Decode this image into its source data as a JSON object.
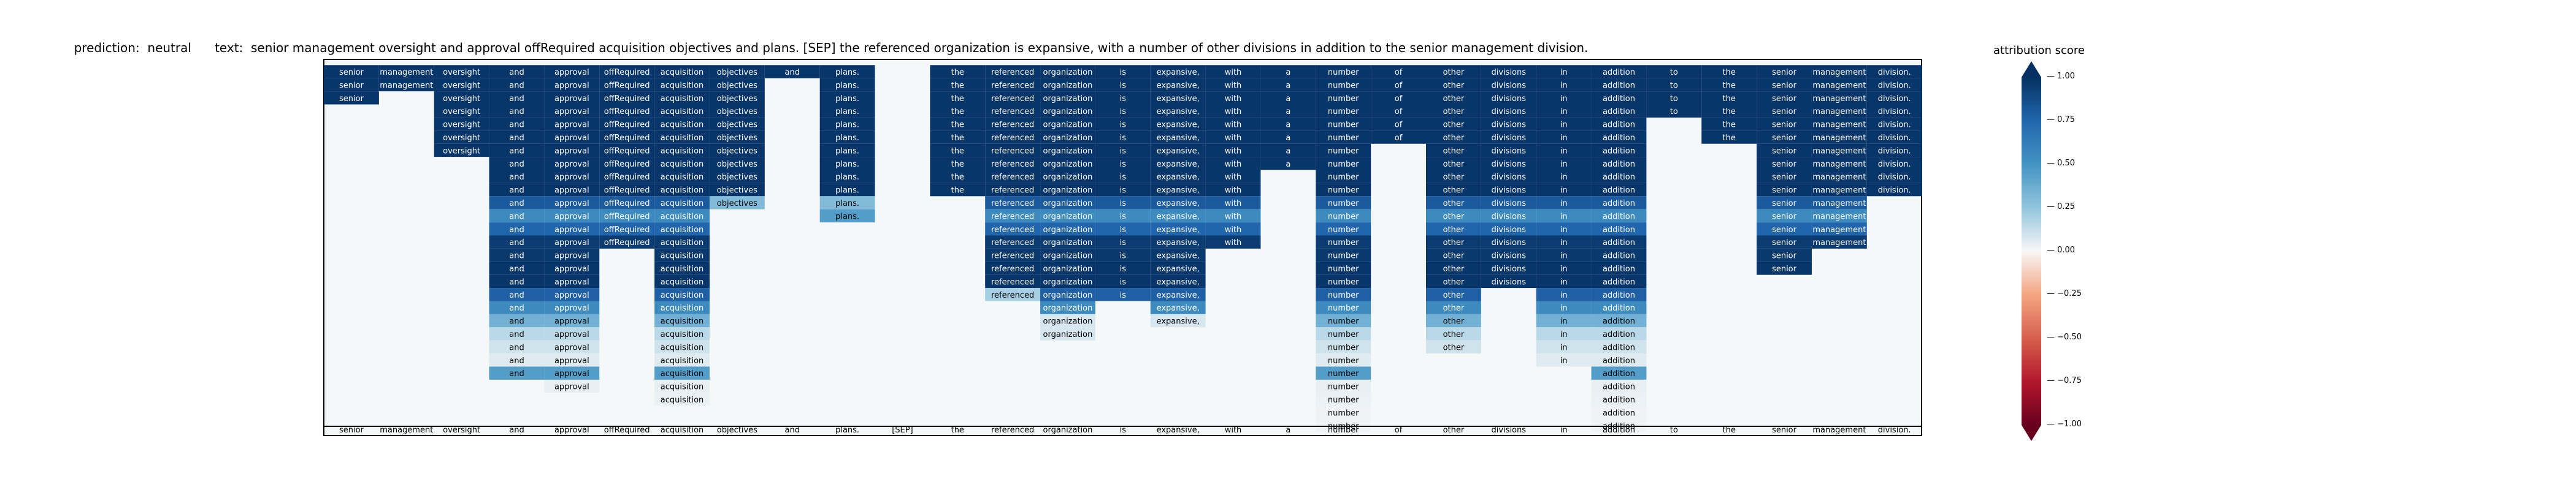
{
  "title": "prediction:  neutral      text:  senior management oversight and approval offRequired acquisition objectives and plans. [SEP] the referenced organization is expansive, with a number of other divisions in addition to the senior management division.",
  "chart_data": {
    "type": "heatmap",
    "tokens": [
      "senior",
      "management",
      "oversight",
      "and",
      "approval",
      "offRequired",
      "acquisition",
      "objectives",
      "and",
      "plans.",
      "[SEP]",
      "the",
      "referenced",
      "organization",
      "is",
      "expansive,",
      "with",
      "a",
      "number",
      "of",
      "other",
      "divisions",
      "in",
      "addition",
      "to",
      "the",
      "senior",
      "management",
      "division."
    ],
    "column_heights": [
      3,
      2,
      7,
      24,
      25,
      14,
      26,
      11,
      1,
      12,
      0,
      10,
      18,
      21,
      18,
      20,
      14,
      8,
      28,
      6,
      22,
      17,
      23,
      28,
      4,
      6,
      16,
      14,
      10
    ],
    "column_values": [
      [
        0.97,
        0.97,
        0.97
      ],
      [
        0.97,
        0.97
      ],
      [
        0.97,
        0.97,
        0.97,
        0.97,
        0.97,
        0.97,
        0.97
      ],
      [
        0.97,
        0.97,
        0.97,
        0.97,
        0.97,
        0.97,
        0.97,
        0.97,
        0.97,
        0.97,
        0.8,
        0.55,
        0.75,
        0.95,
        0.96,
        0.97,
        0.97,
        0.78,
        0.55,
        0.35,
        0.15,
        0.1,
        0.06,
        0.45
      ],
      [
        0.97,
        0.97,
        0.97,
        0.97,
        0.97,
        0.97,
        0.97,
        0.97,
        0.97,
        0.97,
        0.8,
        0.55,
        0.75,
        0.95,
        0.96,
        0.97,
        0.97,
        0.78,
        0.55,
        0.35,
        0.15,
        0.1,
        0.06,
        0.45,
        0.04
      ],
      [
        0.97,
        0.97,
        0.97,
        0.97,
        0.97,
        0.97,
        0.97,
        0.97,
        0.97,
        0.97,
        0.8,
        0.55,
        0.75,
        0.95
      ],
      [
        0.97,
        0.97,
        0.97,
        0.97,
        0.97,
        0.97,
        0.97,
        0.97,
        0.97,
        0.97,
        0.8,
        0.55,
        0.75,
        0.95,
        0.96,
        0.97,
        0.97,
        0.78,
        0.55,
        0.35,
        0.15,
        0.1,
        0.06,
        0.45,
        0.04,
        0.03
      ],
      [
        0.97,
        0.97,
        0.97,
        0.97,
        0.97,
        0.97,
        0.97,
        0.97,
        0.97,
        0.97,
        0.3
      ],
      [
        0.97
      ],
      [
        0.97,
        0.97,
        0.97,
        0.97,
        0.97,
        0.97,
        0.97,
        0.97,
        0.97,
        0.97,
        0.3,
        0.45
      ],
      [],
      [
        0.97,
        0.97,
        0.97,
        0.97,
        0.97,
        0.97,
        0.97,
        0.97,
        0.97,
        0.97
      ],
      [
        0.97,
        0.97,
        0.97,
        0.97,
        0.97,
        0.97,
        0.97,
        0.97,
        0.97,
        0.97,
        0.8,
        0.55,
        0.75,
        0.95,
        0.96,
        0.97,
        0.97,
        0.2
      ],
      [
        0.97,
        0.97,
        0.97,
        0.97,
        0.97,
        0.97,
        0.97,
        0.97,
        0.97,
        0.97,
        0.8,
        0.55,
        0.75,
        0.95,
        0.96,
        0.97,
        0.97,
        0.78,
        0.55,
        0.08,
        0.08
      ],
      [
        0.97,
        0.97,
        0.97,
        0.97,
        0.97,
        0.97,
        0.97,
        0.97,
        0.97,
        0.97,
        0.8,
        0.55,
        0.75,
        0.95,
        0.96,
        0.97,
        0.97,
        0.78
      ],
      [
        0.97,
        0.97,
        0.97,
        0.97,
        0.97,
        0.97,
        0.97,
        0.97,
        0.97,
        0.97,
        0.8,
        0.55,
        0.75,
        0.95,
        0.96,
        0.97,
        0.97,
        0.78,
        0.55,
        0.08
      ],
      [
        0.97,
        0.97,
        0.97,
        0.97,
        0.97,
        0.97,
        0.97,
        0.97,
        0.97,
        0.97,
        0.8,
        0.55,
        0.75,
        0.95
      ],
      [
        0.97,
        0.97,
        0.97,
        0.97,
        0.97,
        0.97,
        0.97,
        0.97
      ],
      [
        0.97,
        0.97,
        0.97,
        0.97,
        0.97,
        0.97,
        0.97,
        0.97,
        0.97,
        0.97,
        0.8,
        0.55,
        0.75,
        0.95,
        0.96,
        0.97,
        0.97,
        0.78,
        0.55,
        0.35,
        0.15,
        0.1,
        0.06,
        0.45,
        0.04,
        0.03,
        0.02,
        0.02
      ],
      [
        0.97,
        0.97,
        0.97,
        0.97,
        0.97,
        0.97
      ],
      [
        0.97,
        0.97,
        0.97,
        0.97,
        0.97,
        0.97,
        0.97,
        0.97,
        0.97,
        0.97,
        0.8,
        0.55,
        0.75,
        0.95,
        0.96,
        0.97,
        0.97,
        0.78,
        0.55,
        0.35,
        0.15,
        0.1
      ],
      [
        0.97,
        0.97,
        0.97,
        0.97,
        0.97,
        0.97,
        0.97,
        0.97,
        0.97,
        0.97,
        0.8,
        0.55,
        0.75,
        0.95,
        0.96,
        0.97,
        0.97
      ],
      [
        0.97,
        0.97,
        0.97,
        0.97,
        0.97,
        0.97,
        0.97,
        0.97,
        0.97,
        0.97,
        0.8,
        0.55,
        0.75,
        0.95,
        0.96,
        0.97,
        0.97,
        0.78,
        0.55,
        0.35,
        0.15,
        0.1,
        0.06
      ],
      [
        0.97,
        0.97,
        0.97,
        0.97,
        0.97,
        0.97,
        0.97,
        0.97,
        0.97,
        0.97,
        0.8,
        0.55,
        0.75,
        0.95,
        0.96,
        0.97,
        0.97,
        0.78,
        0.55,
        0.35,
        0.15,
        0.1,
        0.06,
        0.45,
        0.04,
        0.03,
        0.02,
        0.02
      ],
      [
        0.97,
        0.97,
        0.97,
        0.97
      ],
      [
        0.97,
        0.97,
        0.97,
        0.97,
        0.97,
        0.97
      ],
      [
        0.97,
        0.97,
        0.97,
        0.97,
        0.97,
        0.97,
        0.97,
        0.97,
        0.97,
        0.97,
        0.8,
        0.55,
        0.75,
        0.95,
        0.96,
        0.97
      ],
      [
        0.97,
        0.97,
        0.97,
        0.97,
        0.97,
        0.97,
        0.97,
        0.97,
        0.97,
        0.97,
        0.8,
        0.55,
        0.75,
        0.95
      ],
      [
        0.97,
        0.97,
        0.97,
        0.97,
        0.97,
        0.97,
        0.97,
        0.97,
        0.97,
        0.97
      ]
    ],
    "colorbar": {
      "label": "attribution score",
      "range": [
        -1.0,
        1.0
      ],
      "ticks": [
        "1.00",
        "0.75",
        "0.50",
        "0.25",
        "0.00",
        "−0.25",
        "−0.50",
        "−0.75",
        "−1.00"
      ],
      "colormap": "RdBu"
    }
  }
}
